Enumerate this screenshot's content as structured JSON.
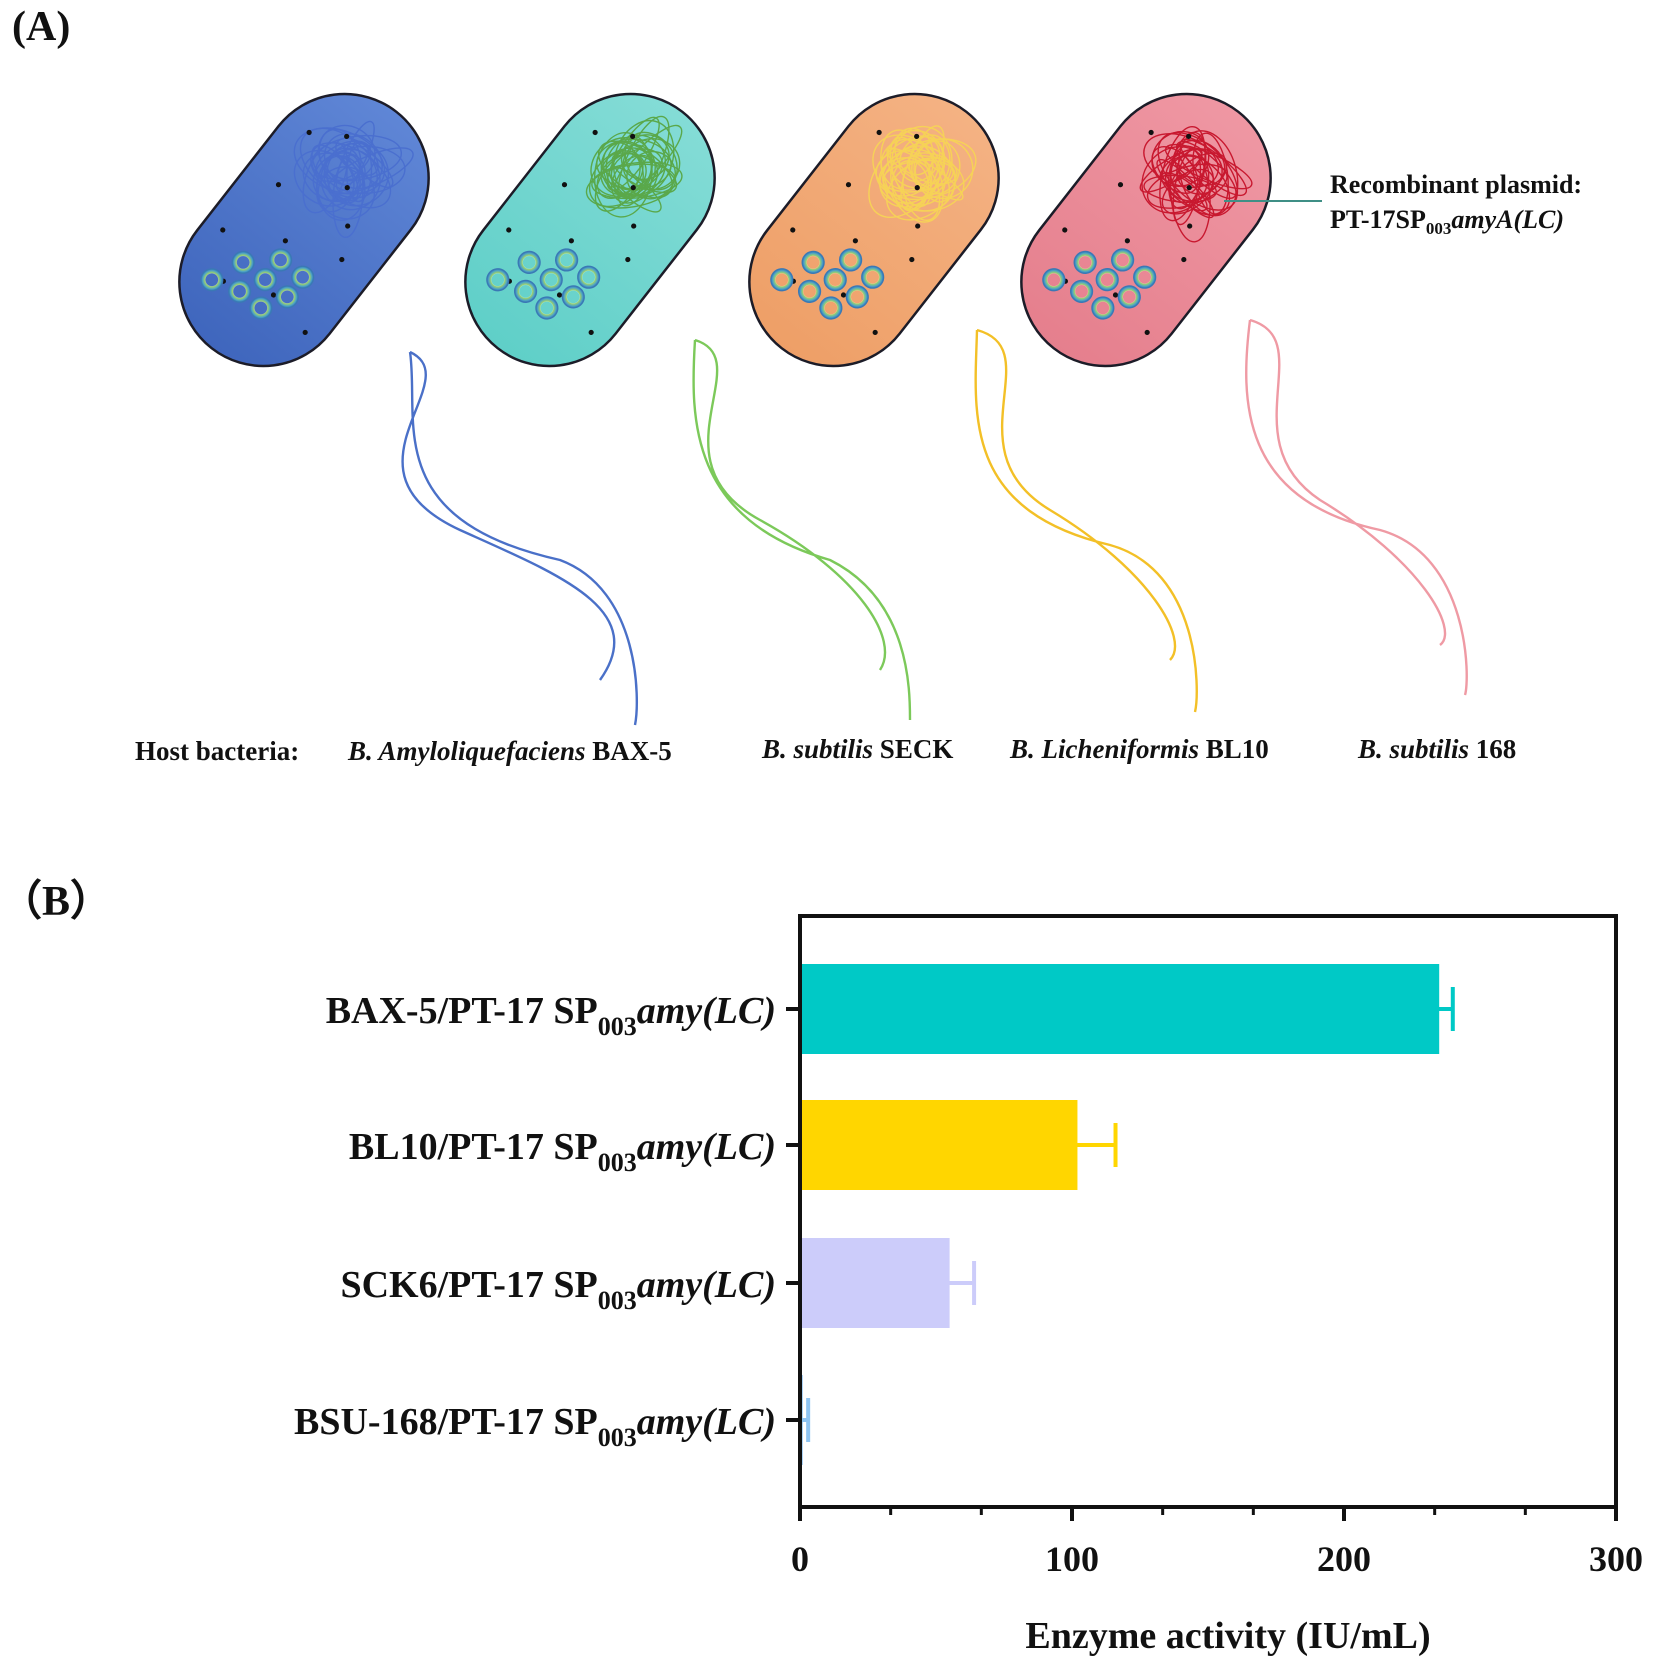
{
  "panel_a": {
    "label": "(A)",
    "host_label": "Host bacteria:",
    "plasmid_title": "Recombinant plasmid:",
    "plasmid_name": {
      "prefix": "PT-17SP",
      "sub": "003",
      "gene": "amyA(LC)"
    },
    "bacteria": [
      {
        "genus": "B. Amyloliquefaciens",
        "strain": " BAX-5",
        "body_color": "#5f86d6",
        "body_dark": "#3f66bd",
        "dna_color": "#4a6fcf",
        "flagellum_color": "#4a70c8"
      },
      {
        "genus": "B. subtilis",
        "strain": " SECK",
        "body_color": "#84dcd6",
        "body_dark": "#5fcfc8",
        "dna_color": "#5aa84a",
        "flagellum_color": "#7cc95a"
      },
      {
        "genus": "B. Licheniformis",
        "strain": " BL10",
        "body_color": "#f4b283",
        "body_dark": "#ee9f67",
        "dna_color": "#f6d257",
        "flagellum_color": "#f3c027"
      },
      {
        "genus": "B. subtilis",
        "strain": " 168",
        "body_color": "#ef97a3",
        "body_dark": "#e57f8d",
        "dna_color": "#c8182f",
        "flagellum_color": "#ef9aa4"
      }
    ]
  },
  "panel_b": {
    "label": "（B）"
  },
  "chart_data": {
    "type": "bar",
    "orientation": "horizontal",
    "categories": [
      {
        "prefix": "BAX-5/PT-17 SP",
        "sub": "003",
        "gene": "amy(LC)"
      },
      {
        "prefix": "BL10/PT-17 SP",
        "sub": "003",
        "gene": "amy(LC)"
      },
      {
        "prefix": "SCK6/PT-17 SP",
        "sub": "003",
        "gene": "amy(LC)"
      },
      {
        "prefix": "BSU-168/PT-17 SP",
        "sub": "003",
        "gene": "amy(LC)"
      }
    ],
    "values": [
      235,
      102,
      55,
      1
    ],
    "errors": [
      5,
      14,
      9,
      2
    ],
    "colors": [
      "#00c9c6",
      "#ffd600",
      "#ccccfa",
      "#8fc4f2"
    ],
    "xlabel": "Enzyme activity (IU/mL)",
    "xlim": [
      0,
      300
    ],
    "xticks": [
      "0",
      "100",
      "200",
      "300"
    ],
    "grid": false
  }
}
